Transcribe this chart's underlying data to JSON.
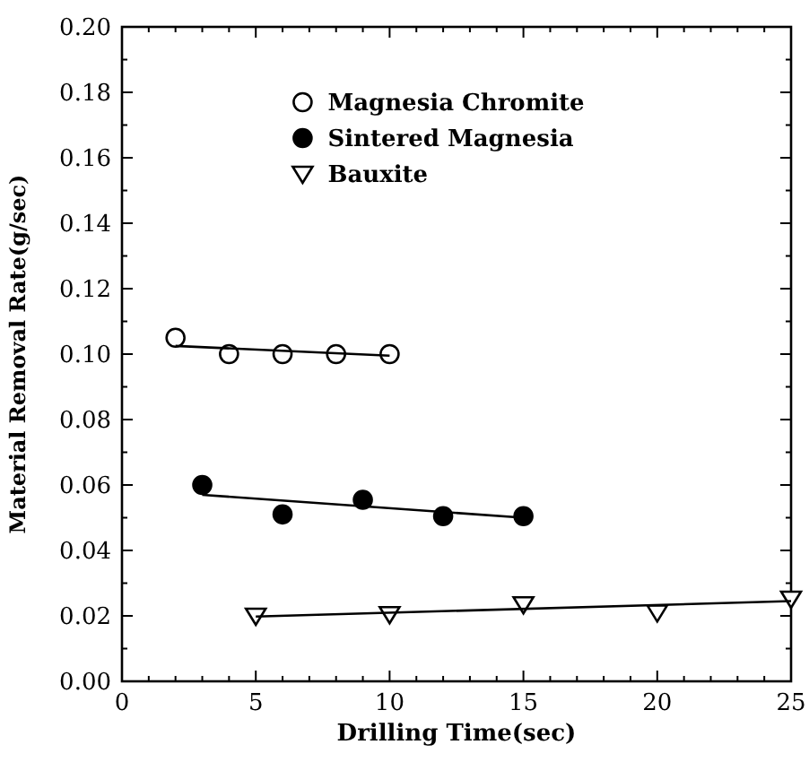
{
  "chart_data": {
    "type": "scatter",
    "xlabel": "Drilling Time(sec)",
    "ylabel": "Material Removal Rate(g/sec)",
    "xlim": [
      0,
      25
    ],
    "ylim": [
      0,
      0.2
    ],
    "xticks": [
      0,
      {
        "value": 1,
        "label": null
      },
      {
        "value": 2,
        "label": null
      },
      {
        "value": 3,
        "label": null
      },
      {
        "value": 4,
        "label": null
      },
      5,
      {
        "value": 6,
        "label": null
      },
      {
        "value": 7,
        "label": null
      },
      {
        "value": 8,
        "label": null
      },
      {
        "value": 9,
        "label": null
      },
      10,
      {
        "value": 11,
        "label": null
      },
      {
        "value": 12,
        "label": null
      },
      {
        "value": 13,
        "label": null
      },
      {
        "value": 14,
        "label": null
      },
      15,
      {
        "value": 16,
        "label": null
      },
      {
        "value": 17,
        "label": null
      },
      {
        "value": 18,
        "label": null
      },
      {
        "value": 19,
        "label": null
      },
      20,
      {
        "value": 21,
        "label": null
      },
      {
        "value": 22,
        "label": null
      },
      {
        "value": 23,
        "label": null
      },
      {
        "value": 24,
        "label": null
      },
      25
    ],
    "yticks": [
      {
        "value": 0,
        "label": "0.00"
      },
      {
        "value": 0.01,
        "label": null
      },
      {
        "value": 0.02,
        "label": "0.02"
      },
      {
        "value": 0.03,
        "label": null
      },
      {
        "value": 0.04,
        "label": "0.04"
      },
      {
        "value": 0.05,
        "label": null
      },
      {
        "value": 0.06,
        "label": "0.06"
      },
      {
        "value": 0.07,
        "label": null
      },
      {
        "value": 0.08,
        "label": "0.08"
      },
      {
        "value": 0.09,
        "label": null
      },
      {
        "value": 0.1,
        "label": "0.10"
      },
      {
        "value": 0.11,
        "label": null
      },
      {
        "value": 0.12,
        "label": "0.12"
      },
      {
        "value": 0.13,
        "label": null
      },
      {
        "value": 0.14,
        "label": "0.14"
      },
      {
        "value": 0.15,
        "label": null
      },
      {
        "value": 0.16,
        "label": "0.16"
      },
      {
        "value": 0.17,
        "label": null
      },
      {
        "value": 0.18,
        "label": "0.18"
      },
      {
        "value": 0.19,
        "label": null
      },
      {
        "value": 0.2,
        "label": "0.20"
      }
    ],
    "grid": false,
    "legend": "top",
    "series": [
      {
        "name": "Magnesia Chromite",
        "color": "#ffffff",
        "marker": "circle",
        "x": [
          2,
          4,
          6,
          8,
          10
        ],
        "values": [
          0.105,
          0.1,
          0.1,
          0.1,
          0.1
        ]
      },
      {
        "name": "Sintered Magnesia",
        "color": "#000000",
        "marker": "circle",
        "x": [
          3,
          6,
          9,
          12,
          15
        ],
        "values": [
          0.06,
          0.051,
          0.0555,
          0.0505,
          0.0505
        ]
      },
      {
        "name": "Bauxite",
        "color": "#ffffff",
        "marker": "triangle",
        "x": [
          5,
          10,
          15,
          20,
          25
        ],
        "values": [
          0.02,
          0.0205,
          0.0235,
          0.021,
          0.0252
        ]
      },
      {
        "type": "line",
        "color": "#000000",
        "marker": "none",
        "x": [
          2,
          10
        ],
        "values": [
          0.1025,
          0.0995
        ]
      },
      {
        "type": "line",
        "color": "#000000",
        "marker": "none",
        "x": [
          3,
          15
        ],
        "values": [
          0.057,
          0.05
        ]
      },
      {
        "type": "line",
        "color": "#000000",
        "marker": "none",
        "x": [
          5,
          25
        ],
        "values": [
          0.0198,
          0.0245
        ]
      }
    ]
  }
}
